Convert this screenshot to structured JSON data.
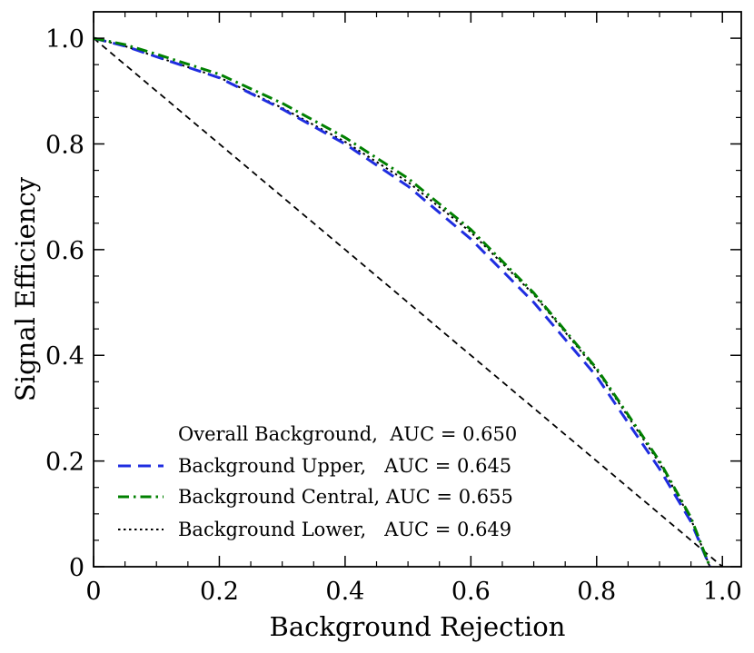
{
  "chart_data": {
    "type": "line",
    "xlabel": "Background Rejection",
    "ylabel": "Signal Efficiency",
    "xlim": [
      0,
      1.03
    ],
    "ylim": [
      0,
      1.05
    ],
    "xticks": [
      0,
      0.2,
      0.4,
      0.6,
      0.8,
      1.0
    ],
    "xtick_labels": [
      "0",
      "0.2",
      "0.4",
      "0.6",
      "0.8",
      "1.0"
    ],
    "yticks": [
      0,
      0.2,
      0.4,
      0.6,
      0.8,
      1.0
    ],
    "ytick_labels": [
      "0",
      "0.2",
      "0.4",
      "0.6",
      "0.8",
      "1.0"
    ],
    "grid": false,
    "legend_placement": "lower-left",
    "reference_line": {
      "x": [
        0,
        1.0
      ],
      "y": [
        1.0,
        0
      ],
      "color": "#000000",
      "style": "dashed"
    },
    "series": [
      {
        "name": "Overall Background,  AUC = 0.650",
        "color": "#000000",
        "style": "none",
        "x": [
          0,
          0.05,
          0.1,
          0.2,
          0.3,
          0.4,
          0.5,
          0.6,
          0.7,
          0.8,
          0.9,
          0.95,
          0.98
        ],
        "y": [
          1.0,
          0.985,
          0.965,
          0.925,
          0.868,
          0.804,
          0.727,
          0.632,
          0.512,
          0.37,
          0.195,
          0.09,
          0.0
        ]
      },
      {
        "name": "Background Upper,   AUC = 0.645",
        "color": "#1f2de0",
        "style": "dashed",
        "x": [
          0,
          0.05,
          0.1,
          0.2,
          0.3,
          0.4,
          0.5,
          0.6,
          0.7,
          0.8,
          0.9,
          0.95,
          0.98
        ],
        "y": [
          1.0,
          0.985,
          0.965,
          0.925,
          0.866,
          0.8,
          0.72,
          0.62,
          0.5,
          0.36,
          0.185,
          0.085,
          0.0
        ]
      },
      {
        "name": "Background Central, AUC = 0.655",
        "color": "#008000",
        "style": "dashdot",
        "x": [
          0,
          0.05,
          0.1,
          0.2,
          0.3,
          0.4,
          0.5,
          0.6,
          0.7,
          0.8,
          0.9,
          0.95,
          0.98
        ],
        "y": [
          1.0,
          0.988,
          0.97,
          0.932,
          0.877,
          0.812,
          0.735,
          0.638,
          0.518,
          0.375,
          0.2,
          0.093,
          0.0
        ]
      },
      {
        "name": "Background Lower,   AUC = 0.649",
        "color": "#000000",
        "style": "dotted",
        "x": [
          0,
          0.05,
          0.1,
          0.2,
          0.3,
          0.4,
          0.5,
          0.6,
          0.7,
          0.8,
          0.9,
          0.95,
          0.98
        ],
        "y": [
          1.0,
          0.985,
          0.965,
          0.926,
          0.868,
          0.804,
          0.728,
          0.633,
          0.515,
          0.372,
          0.196,
          0.09,
          0.0
        ]
      }
    ]
  }
}
